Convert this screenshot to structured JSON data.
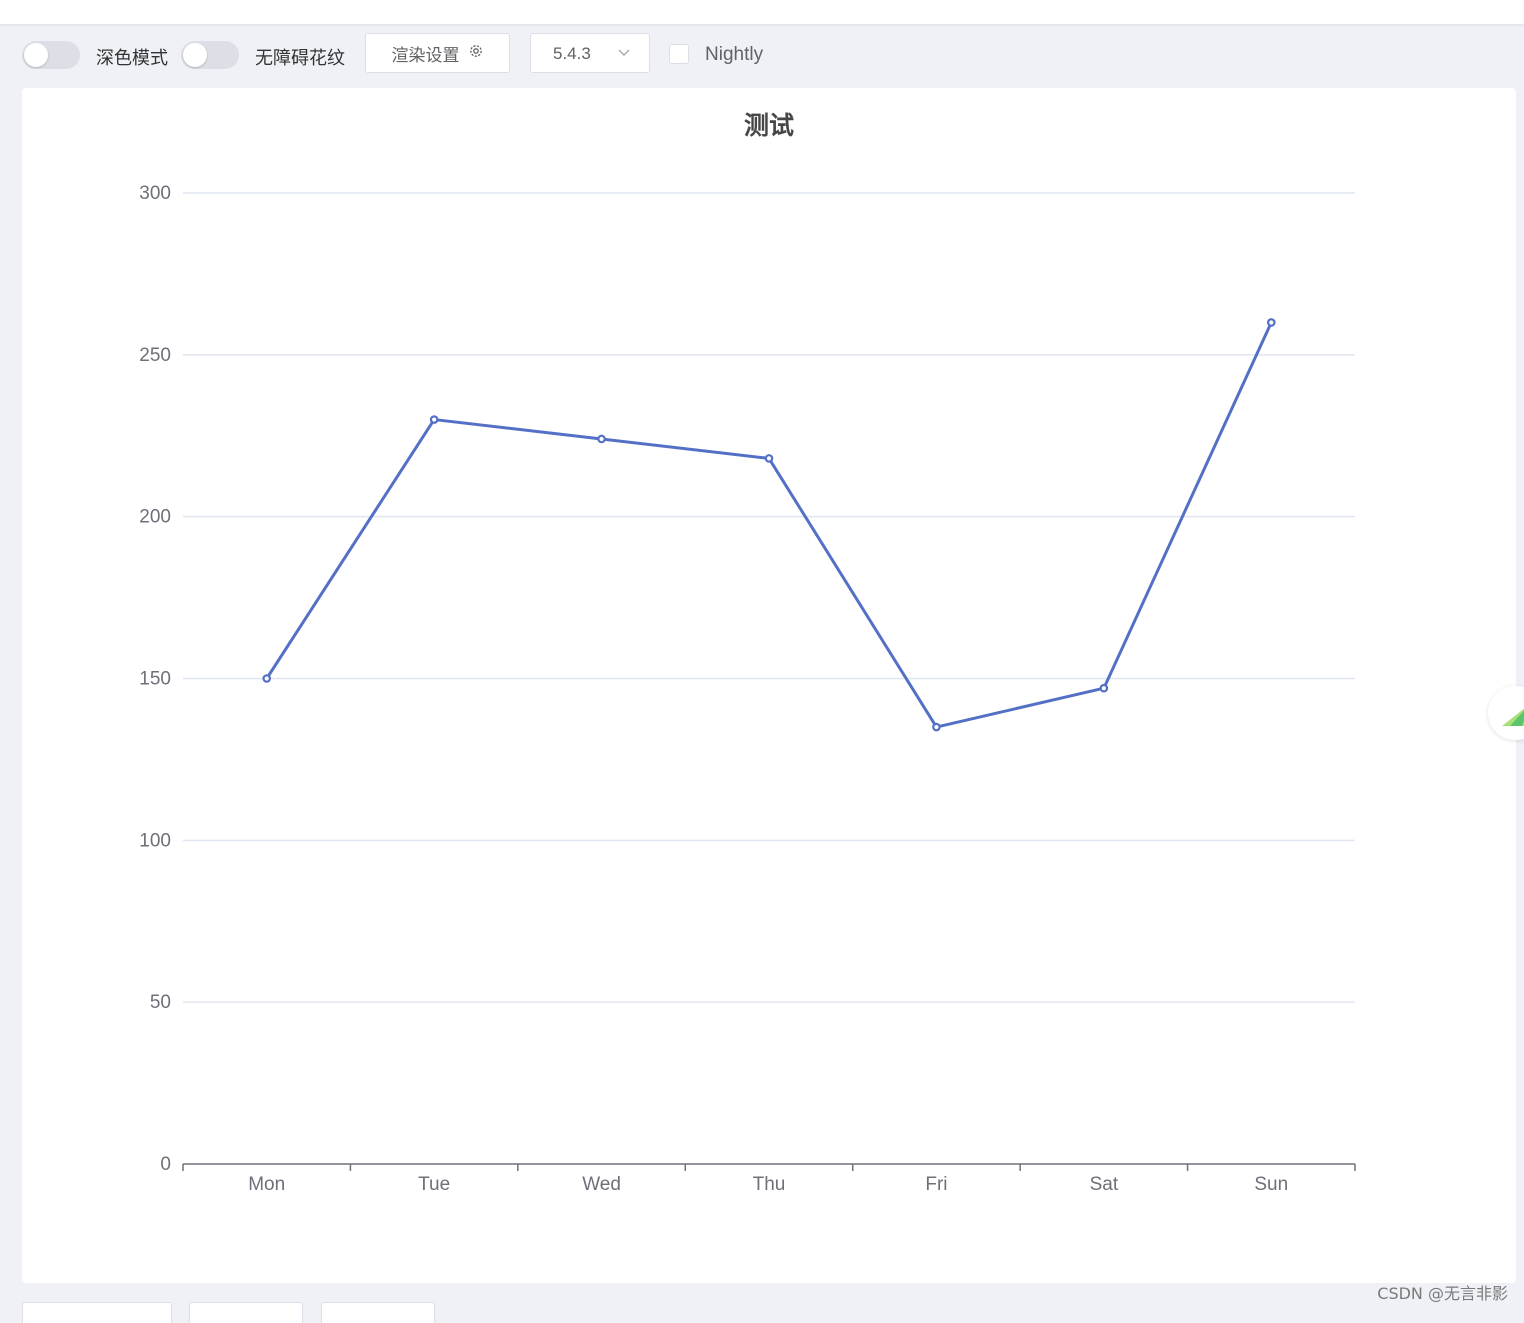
{
  "toolbar": {
    "dark_mode_label": "深色模式",
    "aria_pattern_label": "无障碍花纹",
    "render_settings_label": "渲染设置",
    "version_value": "5.4.3",
    "nightly_label": "Nightly"
  },
  "watermark": "CSDN @无言非影",
  "colors": {
    "series": "#5470c6",
    "axis": "#6e7079",
    "grid": "#e0e6f1"
  },
  "chart_data": {
    "type": "line",
    "title": "测试",
    "categories": [
      "Mon",
      "Tue",
      "Wed",
      "Thu",
      "Fri",
      "Sat",
      "Sun"
    ],
    "series": [
      {
        "values": [
          150,
          230,
          224,
          218,
          135,
          147,
          260
        ]
      }
    ],
    "ylim": [
      0,
      300
    ],
    "yticks": [
      0,
      50,
      100,
      150,
      200,
      250,
      300
    ],
    "grid": true,
    "xlabel": "",
    "ylabel": ""
  }
}
